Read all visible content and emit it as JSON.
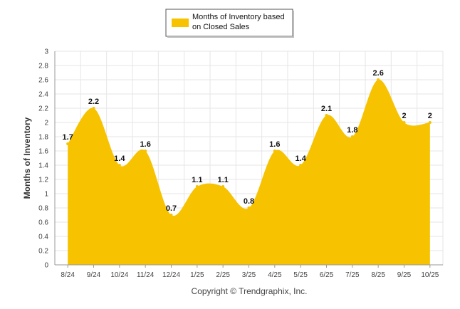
{
  "chart_data": {
    "type": "area",
    "categories": [
      "8/24",
      "9/24",
      "10/24",
      "11/24",
      "12/24",
      "1/25",
      "2/25",
      "3/25",
      "4/25",
      "5/25",
      "6/25",
      "7/25",
      "8/25",
      "9/25",
      "10/25"
    ],
    "series": [
      {
        "name": "Months of Inventory based on Closed Sales",
        "values": [
          1.7,
          2.2,
          1.4,
          1.6,
          0.7,
          1.1,
          1.1,
          0.8,
          1.6,
          1.4,
          2.1,
          1.8,
          2.6,
          2,
          2
        ],
        "color": "#f7c200"
      }
    ],
    "data_labels": [
      "1.7",
      "2.2",
      "1.4",
      "1.6",
      "0.7",
      "1.1",
      "1.1",
      "0.8",
      "1.6",
      "1.4",
      "2.1",
      "1.8",
      "2.6",
      "2",
      "2"
    ],
    "ylabel": "Months of Inventory",
    "ylim": [
      0,
      3
    ],
    "yticks": [
      "0",
      "0.2",
      "0.4",
      "0.6",
      "0.8",
      "1",
      "1.2",
      "1.4",
      "1.6",
      "1.8",
      "2",
      "2.2",
      "2.4",
      "2.6",
      "2.8",
      "3"
    ],
    "grid": true,
    "legend": {
      "position": "top-center",
      "lines": [
        "Months of Inventory based",
        "on Closed Sales"
      ]
    }
  },
  "footer": {
    "copyright": "Copyright © Trendgraphix, Inc."
  }
}
